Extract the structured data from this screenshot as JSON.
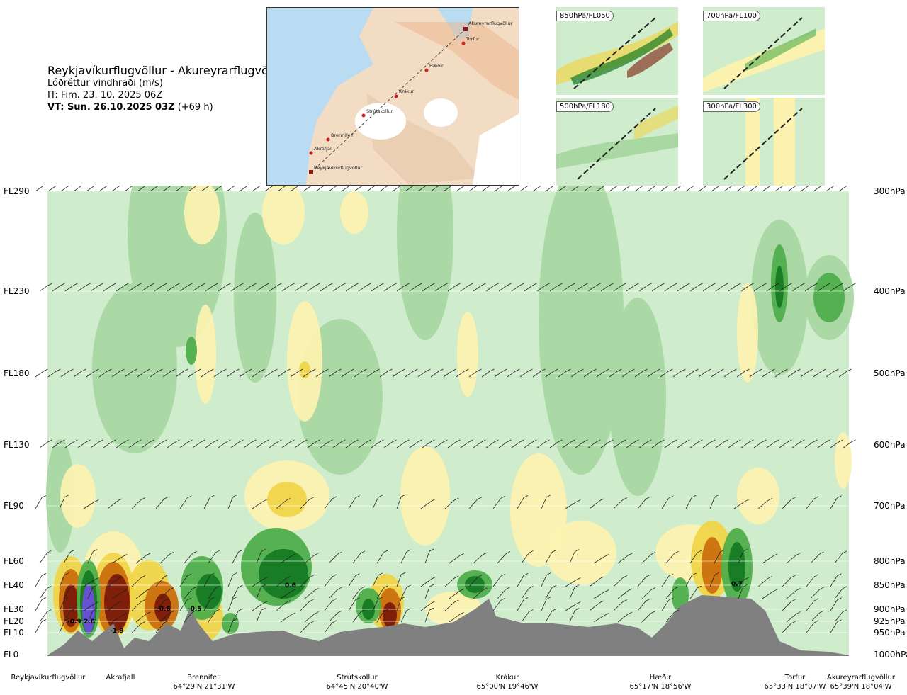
{
  "title": "Reykjavíkurflugvöllur - Akureyrarflugvöllur",
  "subtitle": "Lóðréttur vindhraði (m/s)",
  "it_line": "IT: Fim. 23. 10. 2025 06Z",
  "vt_bold": "VT: Sun. 26.10.2025 03Z",
  "vt_rest": " (+69 h)",
  "map": {
    "labels": [
      "Akureyrarflugvöllur",
      "Torfur",
      "Hæðir",
      "Krákur",
      "Strútskollur",
      "Brennifell",
      "Akrafjall",
      "Reykjavíkurflugvöllur"
    ],
    "colors": {
      "sea": "#b9dcf3",
      "land": "#f3dcc4",
      "ice": "#ffffff",
      "route": "#d11a1a"
    }
  },
  "thumbnails": [
    "850hPa/FL050",
    "700hPa/FL100",
    "500hPa/FL180",
    "300hPa/FL300"
  ],
  "chart_data": {
    "type": "heatmap",
    "title": "Lóðréttur vindhraði (m/s)",
    "levels_left": [
      "FL290",
      "FL230",
      "FL180",
      "FL130",
      "FL90",
      "FL60",
      "FL40",
      "FL30",
      "FL20",
      "FL10",
      "FL0"
    ],
    "levels_right": [
      "300hPa",
      "400hPa",
      "500hPa",
      "600hPa",
      "700hPa",
      "800hPa",
      "850hPa",
      "900hPa",
      "925hPa",
      "950hPa",
      "1000hPa"
    ],
    "stations": [
      {
        "name": "Reykjavíkurflugvöllur",
        "coord": ""
      },
      {
        "name": "Akrafjall",
        "coord": ""
      },
      {
        "name": "Brennifell",
        "coord": "64°29'N 21°31'W"
      },
      {
        "name": "Strútskollur",
        "coord": "64°45'N 20°40'W"
      },
      {
        "name": "Krákur",
        "coord": "65°00'N 19°46'W"
      },
      {
        "name": "Hæðir",
        "coord": "65°17'N 18°56'W"
      },
      {
        "name": "Torfur",
        "coord": "65°33'N 18°07'W"
      },
      {
        "name": "Akureyrarflugvöllur",
        "coord": "65°39'N 18°04'W"
      }
    ],
    "value_labels": [
      "-0.9",
      "2.6",
      "-1.9",
      "-0.6",
      "-0.5",
      "0.6",
      "0.7"
    ],
    "colors": {
      "background": "#cfeccc",
      "strong_down": "#7a1a0a",
      "down": "#c9700e",
      "weak_down": "#f0d54a",
      "light_down": "#fbf2b0",
      "light_up": "#a9d8a3",
      "up": "#4fae4b",
      "strong_up": "#157a23",
      "very_strong_up": "#6a4fd8",
      "terrain": "#808080"
    },
    "grid": true
  }
}
